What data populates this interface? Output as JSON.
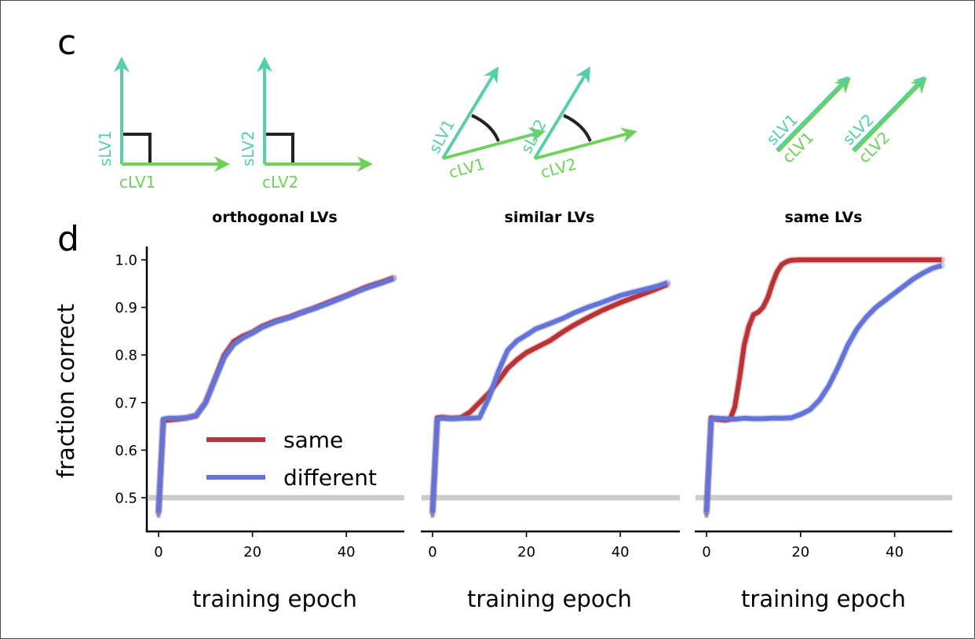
{
  "panel_letters": {
    "top": "c",
    "bottom": "d"
  },
  "colors": {
    "slv": "#55d0a4",
    "clv": "#6fd15a",
    "angle": "#222222",
    "same": "#b73335",
    "different": "#6473d8",
    "chance": "#cccccc",
    "axis": "#000000"
  },
  "diagrams": [
    {
      "type": "orthogonal",
      "pairs": [
        {
          "s_label": "sLV1",
          "c_label": "cLV1"
        },
        {
          "s_label": "sLV2",
          "c_label": "cLV2"
        }
      ]
    },
    {
      "type": "similar",
      "pairs": [
        {
          "s_label": "sLV1",
          "c_label": "cLV1"
        },
        {
          "s_label": "sLV2",
          "c_label": "cLV2"
        }
      ]
    },
    {
      "type": "same",
      "pairs": [
        {
          "s_label": "sLV1",
          "c_label": "cLV1"
        },
        {
          "s_label": "sLV2",
          "c_label": "cLV2"
        }
      ]
    }
  ],
  "chart_data": [
    {
      "type": "line",
      "title": "orthogonal LVs",
      "xlabel": "training epoch",
      "ylabel": "fraction correct",
      "xlim": [
        -3,
        52
      ],
      "ylim": [
        0.44,
        1.03
      ],
      "xticks": [
        0,
        20,
        40
      ],
      "yticks": [
        "1.0",
        "0.9",
        "0.8",
        "0.7",
        "0.6",
        "0.5"
      ],
      "chance_level": 0.5,
      "legend": {
        "entries": [
          "same",
          "different"
        ],
        "position": "lower-right"
      },
      "series": [
        {
          "name": "same",
          "x": [
            0,
            1,
            2,
            4,
            6,
            8,
            10,
            12,
            14,
            16,
            18,
            20,
            22,
            25,
            28,
            30,
            33,
            36,
            40,
            44,
            48,
            50
          ],
          "y": [
            0.47,
            0.662,
            0.663,
            0.665,
            0.668,
            0.672,
            0.7,
            0.75,
            0.8,
            0.828,
            0.84,
            0.848,
            0.86,
            0.872,
            0.88,
            0.888,
            0.898,
            0.91,
            0.925,
            0.942,
            0.955,
            0.962
          ]
        },
        {
          "name": "different",
          "x": [
            0,
            1,
            2,
            4,
            6,
            8,
            10,
            12,
            14,
            16,
            18,
            20,
            22,
            25,
            28,
            30,
            33,
            36,
            40,
            44,
            48,
            50
          ],
          "y": [
            0.47,
            0.665,
            0.667,
            0.667,
            0.668,
            0.673,
            0.7,
            0.748,
            0.795,
            0.822,
            0.836,
            0.846,
            0.858,
            0.87,
            0.879,
            0.887,
            0.897,
            0.908,
            0.924,
            0.94,
            0.953,
            0.96
          ]
        }
      ]
    },
    {
      "type": "line",
      "title": "similar LVs",
      "xlabel": "training epoch",
      "xlim": [
        -3,
        52
      ],
      "ylim": [
        0.44,
        1.03
      ],
      "xticks": [
        0,
        20,
        40
      ],
      "chance_level": 0.5,
      "series": [
        {
          "name": "same",
          "x": [
            0,
            1,
            2,
            4,
            6,
            8,
            10,
            12,
            14,
            16,
            18,
            20,
            22,
            25,
            28,
            30,
            33,
            36,
            40,
            44,
            48,
            50
          ],
          "y": [
            0.47,
            0.668,
            0.669,
            0.667,
            0.668,
            0.68,
            0.7,
            0.72,
            0.745,
            0.772,
            0.79,
            0.805,
            0.815,
            0.83,
            0.85,
            0.862,
            0.878,
            0.893,
            0.91,
            0.925,
            0.94,
            0.948
          ]
        },
        {
          "name": "different",
          "x": [
            0,
            1,
            2,
            4,
            6,
            8,
            10,
            12,
            14,
            16,
            18,
            20,
            22,
            25,
            28,
            30,
            33,
            36,
            40,
            44,
            48,
            50
          ],
          "y": [
            0.47,
            0.665,
            0.667,
            0.666,
            0.667,
            0.667,
            0.668,
            0.71,
            0.765,
            0.81,
            0.83,
            0.842,
            0.855,
            0.866,
            0.878,
            0.888,
            0.9,
            0.91,
            0.925,
            0.935,
            0.945,
            0.952
          ]
        }
      ]
    },
    {
      "type": "line",
      "title": "same LVs",
      "xlabel": "training epoch",
      "xlim": [
        -3,
        52
      ],
      "ylim": [
        0.44,
        1.03
      ],
      "xticks": [
        0,
        20,
        40
      ],
      "chance_level": 0.5,
      "series": [
        {
          "name": "same",
          "x": [
            0,
            1,
            2,
            4,
            5,
            6,
            7,
            8,
            9,
            10,
            11,
            12,
            13,
            14,
            15,
            16,
            17,
            18,
            20,
            22,
            25,
            30,
            40,
            50
          ],
          "y": [
            0.47,
            0.668,
            0.665,
            0.663,
            0.665,
            0.69,
            0.75,
            0.82,
            0.86,
            0.885,
            0.89,
            0.9,
            0.92,
            0.95,
            0.975,
            0.99,
            0.996,
            0.999,
            1.0,
            1.0,
            1.0,
            1.0,
            1.0,
            1.0
          ]
        },
        {
          "name": "different",
          "x": [
            0,
            1,
            2,
            4,
            6,
            8,
            10,
            12,
            14,
            16,
            18,
            20,
            22,
            24,
            26,
            28,
            30,
            32,
            34,
            36,
            38,
            40,
            42,
            44,
            46,
            48,
            50
          ],
          "y": [
            0.47,
            0.665,
            0.667,
            0.666,
            0.665,
            0.667,
            0.666,
            0.666,
            0.667,
            0.667,
            0.668,
            0.675,
            0.685,
            0.705,
            0.735,
            0.775,
            0.82,
            0.855,
            0.88,
            0.9,
            0.915,
            0.93,
            0.945,
            0.96,
            0.972,
            0.982,
            0.988
          ]
        }
      ]
    }
  ]
}
